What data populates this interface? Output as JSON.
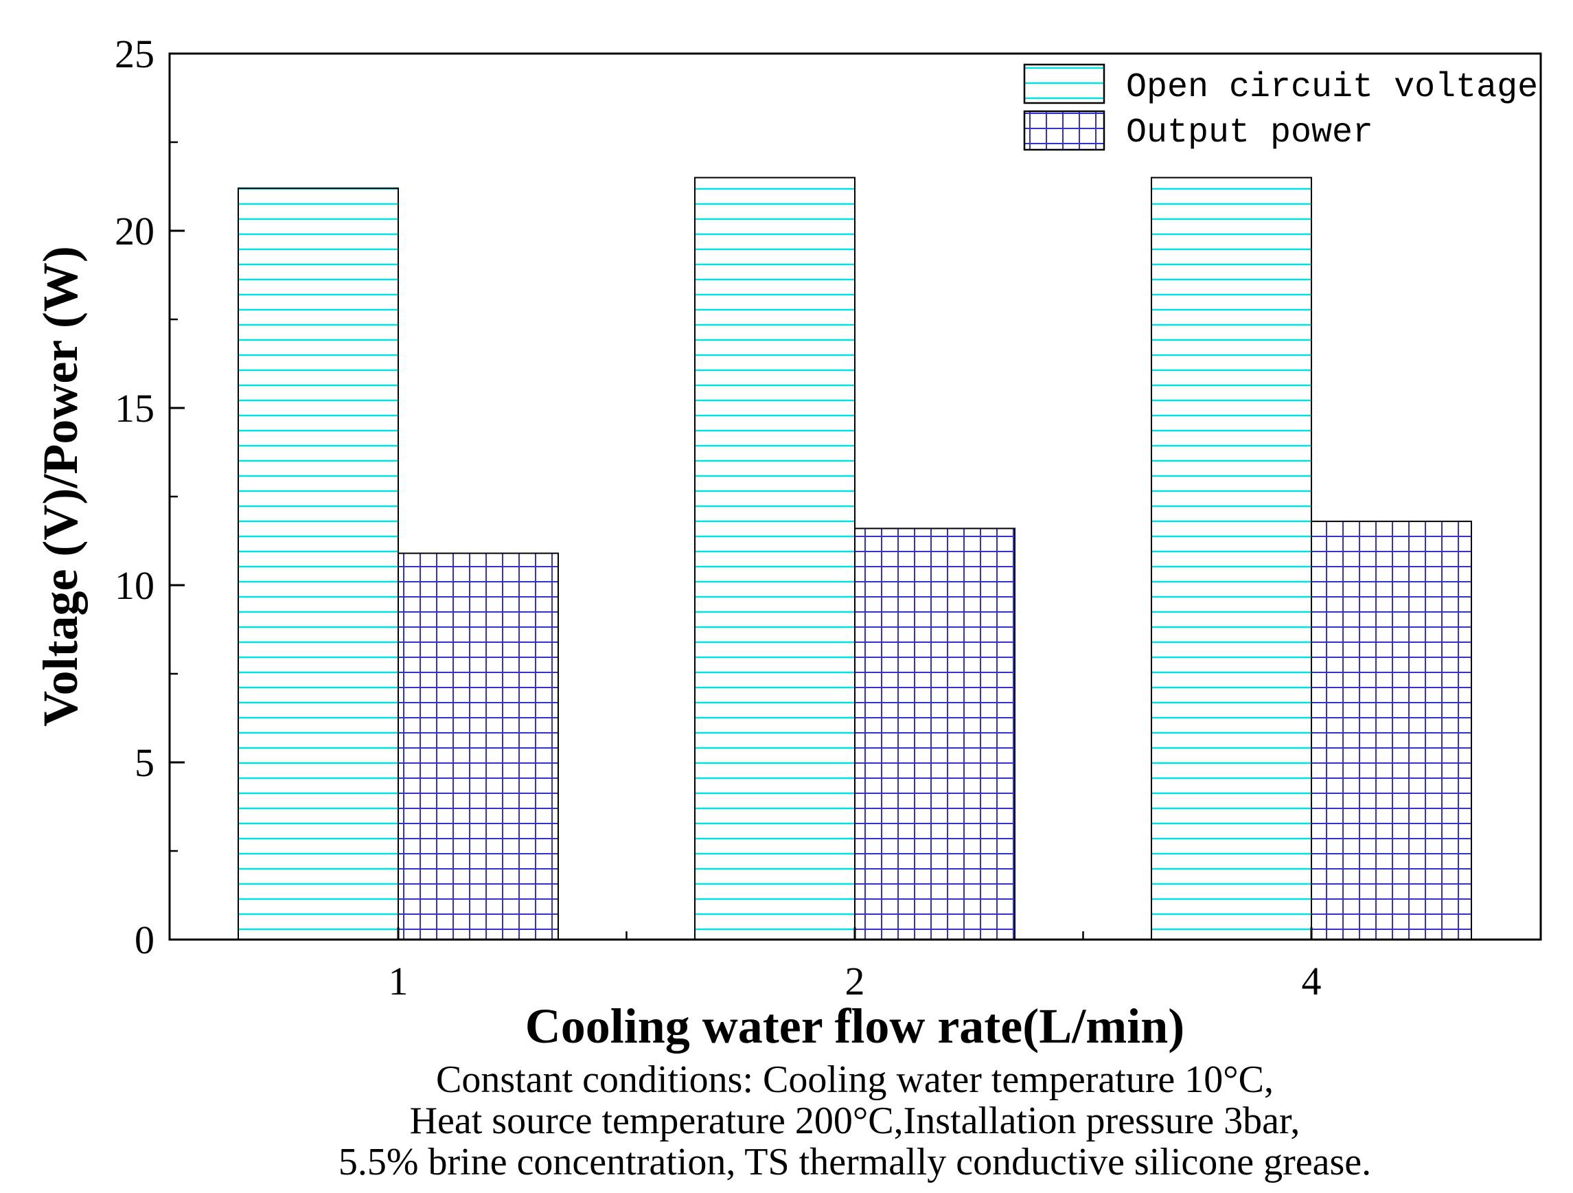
{
  "chart_data": {
    "type": "bar",
    "categories": [
      "1",
      "2",
      "4"
    ],
    "series": [
      {
        "name": "Open circuit voltage",
        "values": [
          21.2,
          21.5,
          21.5
        ],
        "color": "#00e0e0",
        "pattern": "horizontal-lines"
      },
      {
        "name": "Output power",
        "values": [
          10.9,
          11.6,
          11.8
        ],
        "color": "#3333cc",
        "pattern": "grid"
      }
    ],
    "xlabel": "Cooling water flow rate(L/min)",
    "ylabel": "Voltage (V)/Power (W)",
    "ylim": [
      0,
      25
    ],
    "yticks": [
      "0",
      "5",
      "10",
      "15",
      "20",
      "25"
    ],
    "legend_position": "top-right",
    "grid": false
  },
  "caption": {
    "lines": [
      "Constant conditions: Cooling water temperature 10°C,",
      "Heat source temperature 200°C,Installation pressure 3bar,",
      "5.5% brine concentration, TS thermally conductive silicone grease."
    ]
  }
}
